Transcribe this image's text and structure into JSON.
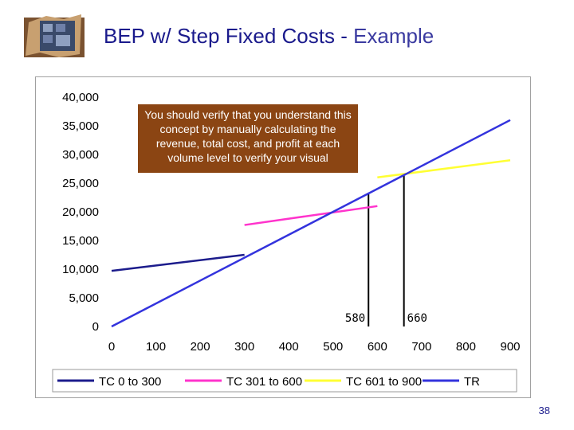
{
  "slide": {
    "title_main": "BEP w/ Step Fixed Costs - ",
    "title_accent": "Example",
    "page_number": "38",
    "callout_text": "You should verify that you understand this concept by manually calculating the revenue, total cost, and profit at each volume level to verify your visual"
  },
  "chart_data": {
    "type": "line",
    "x_ticks": [
      "0",
      "100",
      "200",
      "300",
      "400",
      "500",
      "600",
      "700",
      "800",
      "900"
    ],
    "y_ticks": [
      "0",
      "5,000",
      "10,000",
      "15,000",
      "20,000",
      "25,000",
      "30,000",
      "35,000",
      "40,000"
    ],
    "xlim": [
      0,
      900
    ],
    "ylim": [
      0,
      40000
    ],
    "grid": false,
    "legend_position": "bottom",
    "series": [
      {
        "name": "TC 0 to 300",
        "color": "#1c1c8c",
        "points": [
          [
            0,
            9700
          ],
          [
            300,
            12500
          ]
        ]
      },
      {
        "name": "TC 301 to 600",
        "color": "#ff33cc",
        "points": [
          [
            300,
            17700
          ],
          [
            600,
            21000
          ]
        ]
      },
      {
        "name": "TC 601 to 900",
        "color": "#ffff33",
        "points": [
          [
            600,
            26000
          ],
          [
            900,
            29000
          ]
        ]
      },
      {
        "name": "TR",
        "color": "#3333dd",
        "points": [
          [
            0,
            0
          ],
          [
            900,
            36000
          ]
        ]
      }
    ],
    "markers": [
      {
        "x": 580,
        "label": "580",
        "y_top": 23200
      },
      {
        "x": 660,
        "label": "660",
        "y_top": 26400
      }
    ]
  }
}
